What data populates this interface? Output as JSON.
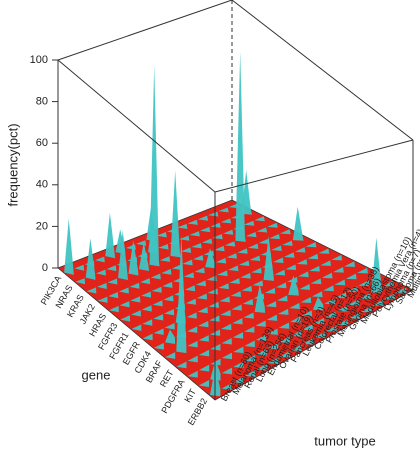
{
  "chart_data": {
    "type": "surface3d",
    "zlabel": "frequency(pct)",
    "xlabel": "gene",
    "ylabel": "tumor type",
    "zlim": [
      0,
      100
    ],
    "zticks": [
      0,
      20,
      40,
      60,
      80,
      100
    ],
    "floor_color": "#e2231a",
    "surface_color": "#3fc4c4",
    "categories": [
      "Breast (n=60)",
      "Melanoma (n=139)",
      "Renal (n=63)",
      "Lung (n=256)",
      "Endometrial (n=10)",
      "Ovarian (n=19)",
      "Pancreas (n=3)",
      "Leukemia (n=45)",
      "Colorectal (n=12)",
      "Prostate (n=50)",
      "Meningioma (n=38)",
      "Glioma (n=66)",
      "Medulloblastoma (n=10)",
      "Polycythemia Vera (n=4)",
      "Lymphoma (n=7)",
      "Sarcoma (n=104)",
      "Multiple Myeloma (n=23)"
    ],
    "series": [
      {
        "name": "PIK3CA",
        "values": [
          25,
          0,
          0,
          0,
          20,
          10,
          0,
          0,
          15,
          0,
          0,
          0,
          0,
          0,
          0,
          0,
          0
        ]
      },
      {
        "name": "NRAS",
        "values": [
          0,
          18,
          0,
          0,
          0,
          0,
          0,
          15,
          0,
          0,
          0,
          0,
          0,
          0,
          0,
          0,
          20
        ]
      },
      {
        "name": "KRAS",
        "values": [
          0,
          0,
          0,
          22,
          15,
          12,
          95,
          0,
          40,
          0,
          0,
          0,
          0,
          0,
          0,
          0,
          0
        ]
      },
      {
        "name": "JAK2",
        "values": [
          0,
          0,
          0,
          0,
          0,
          0,
          0,
          0,
          0,
          0,
          0,
          0,
          0,
          90,
          0,
          0,
          0
        ]
      },
      {
        "name": "HRAS",
        "values": [
          0,
          0,
          0,
          0,
          0,
          0,
          0,
          0,
          0,
          8,
          0,
          0,
          0,
          0,
          0,
          0,
          0
        ]
      },
      {
        "name": "FGFR3",
        "values": [
          0,
          0,
          0,
          0,
          0,
          0,
          0,
          0,
          0,
          0,
          0,
          0,
          0,
          0,
          0,
          0,
          15
        ]
      },
      {
        "name": "FGFR1",
        "values": [
          0,
          0,
          0,
          0,
          0,
          0,
          0,
          0,
          0,
          0,
          0,
          0,
          0,
          0,
          0,
          0,
          0
        ]
      },
      {
        "name": "EGFR",
        "values": [
          0,
          0,
          0,
          15,
          0,
          0,
          0,
          0,
          0,
          0,
          0,
          20,
          0,
          0,
          0,
          0,
          0
        ]
      },
      {
        "name": "CDK4",
        "values": [
          0,
          5,
          0,
          0,
          0,
          0,
          0,
          0,
          0,
          0,
          0,
          0,
          0,
          0,
          0,
          0,
          0
        ]
      },
      {
        "name": "BRAF",
        "values": [
          0,
          55,
          0,
          0,
          0,
          0,
          0,
          0,
          12,
          0,
          0,
          8,
          0,
          0,
          0,
          0,
          0
        ]
      },
      {
        "name": "RET",
        "values": [
          0,
          0,
          0,
          0,
          0,
          0,
          0,
          0,
          0,
          0,
          0,
          0,
          0,
          0,
          0,
          0,
          0
        ]
      },
      {
        "name": "PDGFRA",
        "values": [
          0,
          0,
          0,
          0,
          0,
          0,
          0,
          0,
          0,
          0,
          0,
          5,
          0,
          0,
          0,
          0,
          0
        ]
      },
      {
        "name": "KIT",
        "values": [
          0,
          8,
          0,
          0,
          0,
          0,
          0,
          0,
          0,
          0,
          0,
          0,
          0,
          0,
          0,
          25,
          0
        ]
      },
      {
        "name": "ERBB2",
        "values": [
          12,
          0,
          0,
          0,
          0,
          0,
          0,
          0,
          0,
          0,
          0,
          0,
          0,
          0,
          0,
          0,
          0
        ]
      }
    ]
  }
}
